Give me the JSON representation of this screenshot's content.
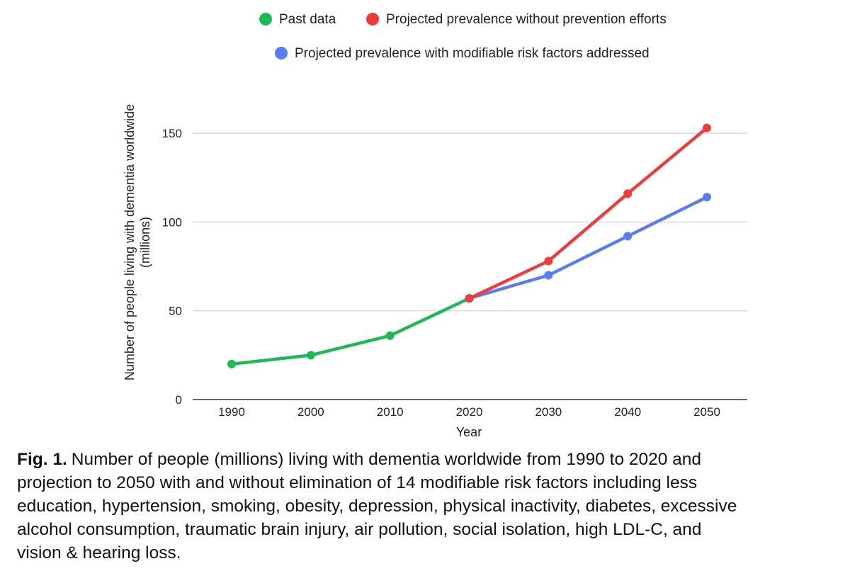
{
  "chart_data": {
    "type": "line",
    "x": [
      1990,
      2000,
      2010,
      2020,
      2030,
      2040,
      2050
    ],
    "xlabel": "Year",
    "ylabel": [
      "Number of people living with dementia worldwide",
      "(millions)"
    ],
    "ylim": [
      0,
      150
    ],
    "yticks": [
      0,
      50,
      100,
      150
    ],
    "grid": true,
    "legend_position": "top",
    "series": [
      {
        "name": "Past data",
        "color": "#1db954",
        "points": [
          [
            1990,
            20
          ],
          [
            2000,
            25
          ],
          [
            2010,
            36
          ],
          [
            2020,
            57
          ]
        ]
      },
      {
        "name": "Projected prevalence without prevention efforts",
        "color": "#ee3b3b",
        "points": [
          [
            2020,
            57
          ],
          [
            2030,
            78
          ],
          [
            2040,
            116
          ],
          [
            2050,
            153
          ]
        ]
      },
      {
        "name": "Projected prevalence with modifiable risk factors addressed",
        "color": "#5b7cf0",
        "points": [
          [
            2020,
            57
          ],
          [
            2030,
            70
          ],
          [
            2040,
            92
          ],
          [
            2050,
            114
          ]
        ]
      }
    ]
  },
  "caption": {
    "label": "Fig. 1.",
    "lines": [
      "Number of people (millions) living with dementia worldwide from 1990 to 2020 and",
      "projection to 2050 with and without elimination of 14 modifiable risk factors including less",
      "education, hypertension, smoking, obesity, depression, physical inactivity, diabetes, excessive",
      "alcohol consumption, traumatic brain injury, air pollution, social isolation, high LDL-C, and",
      "vision & hearing loss."
    ]
  }
}
